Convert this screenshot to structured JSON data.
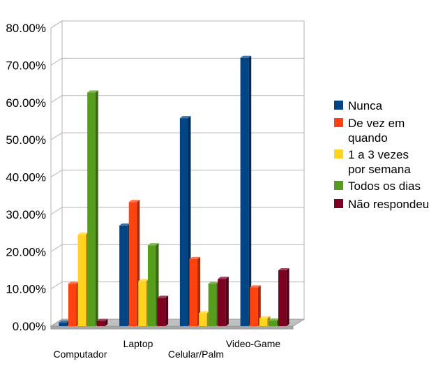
{
  "chart_data": {
    "type": "bar",
    "categories": [
      "Computador",
      "Laptop",
      "Celular/Palm",
      "Video-Game"
    ],
    "series": [
      {
        "name": "Nunca",
        "color": "#004586",
        "values": [
          1.0,
          27.0,
          55.8,
          72.0
        ]
      },
      {
        "name": "De vez em quando",
        "color": "#ff420e",
        "values": [
          11.4,
          33.3,
          18.0,
          10.4
        ]
      },
      {
        "name": "1 a 3 vezes por semana",
        "color": "#ffd320",
        "values": [
          24.6,
          12.1,
          3.5,
          2.1
        ]
      },
      {
        "name": "Todos os dias",
        "color": "#579d1c",
        "values": [
          62.7,
          21.7,
          11.4,
          1.5
        ]
      },
      {
        "name": "Não respondeu",
        "color": "#7e0021",
        "values": [
          1.4,
          7.6,
          12.7,
          15.0
        ]
      }
    ],
    "yticks": [
      "0.00%",
      "10.00%",
      "20.00%",
      "30.00%",
      "40.00%",
      "50.00%",
      "60.00%",
      "70.00%",
      "80.00%"
    ],
    "ylim": [
      0,
      80
    ],
    "grid": true,
    "legend_position": "right",
    "legend_lines": [
      [
        "Nunca"
      ],
      [
        "De vez em",
        "quando"
      ],
      [
        "1 a 3 vezes",
        "por semana"
      ],
      [
        "Todos os dias"
      ],
      [
        "Não respondeu"
      ]
    ]
  }
}
